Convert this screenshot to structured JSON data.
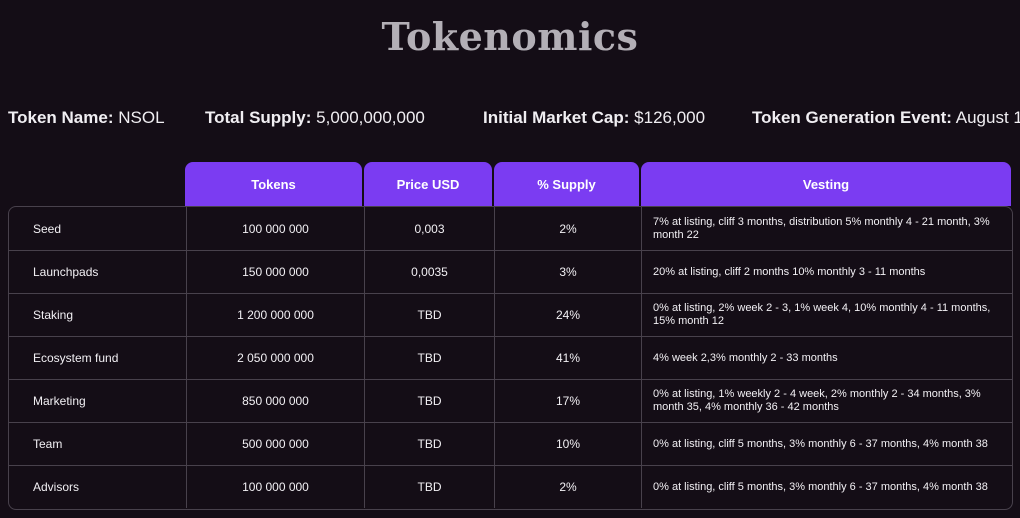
{
  "page": {
    "title": "Tokenomics"
  },
  "info": [
    {
      "label": "Token Name:",
      "value": "NSOL"
    },
    {
      "label": "Total Supply:",
      "value": "5,000,000,000"
    },
    {
      "label": "Initial Market Cap:",
      "value": "$126,000"
    },
    {
      "label": "Token Generation Event:",
      "value": "August 1"
    }
  ],
  "table": {
    "headers": [
      "Tokens",
      "Price USD",
      "% Supply",
      "Vesting"
    ],
    "rows": [
      {
        "name": "Seed",
        "tokens": "100 000 000",
        "price": "0,003",
        "supply": "2%",
        "vesting": "7% at listing, cliff 3 months, distribution 5% monthly 4 - 21 month, 3% month 22"
      },
      {
        "name": "Launchpads",
        "tokens": "150 000 000",
        "price": "0,0035",
        "supply": "3%",
        "vesting": "20% at listing, cliff 2 months 10% monthly 3 - 11 months"
      },
      {
        "name": "Staking",
        "tokens": "1 200 000 000",
        "price": "TBD",
        "supply": "24%",
        "vesting": "0% at listing, 2% week 2 - 3, 1% week 4, 10% monthly 4 - 11 months, 15% month 12"
      },
      {
        "name": "Ecosystem fund",
        "tokens": "2 050 000 000",
        "price": "TBD",
        "supply": "41%",
        "vesting": "4% week 2,3% monthly 2 - 33 months"
      },
      {
        "name": "Marketing",
        "tokens": "850 000 000",
        "price": "TBD",
        "supply": "17%",
        "vesting": "0% at listing, 1% weekly 2 - 4 week, 2% monthly 2 - 34 months, 3% month 35, 4% monthly 36 - 42 months"
      },
      {
        "name": "Team",
        "tokens": "500 000 000",
        "price": "TBD",
        "supply": "10%",
        "vesting": "0% at listing, cliff 5 months, 3% monthly 6 - 37 months, 4% month 38"
      },
      {
        "name": "Advisors",
        "tokens": "100 000 000",
        "price": "TBD",
        "supply": "2%",
        "vesting": "0% at listing, cliff 5 months, 3% monthly 6 - 37 months, 4% month 38"
      }
    ]
  },
  "colors": {
    "background": "#140d16",
    "accent": "#7b3cf2",
    "title": "#b3afb6",
    "border": "#48414c"
  }
}
